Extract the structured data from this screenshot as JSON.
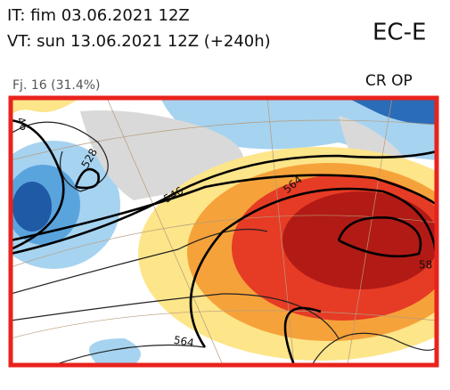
{
  "header": {
    "issue_time": "IT: fim 03.06.2021 12Z",
    "valid_time": "VT: sun 13.06.2021 12Z  (+240h)",
    "model": "EC-E"
  },
  "panel": {
    "cluster": "Fj. 16 (31.4%)",
    "regime": "CR OP",
    "contour_labels": [
      "46",
      "528",
      "546",
      "564",
      "564",
      "58"
    ]
  }
}
